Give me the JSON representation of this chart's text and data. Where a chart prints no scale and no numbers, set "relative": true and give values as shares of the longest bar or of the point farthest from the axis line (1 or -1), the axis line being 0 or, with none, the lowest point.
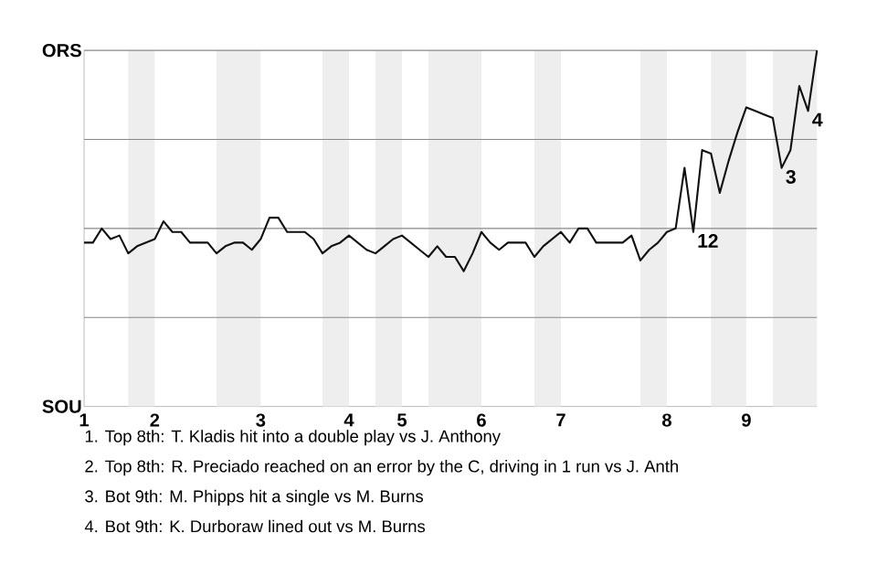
{
  "chart_data": {
    "type": "line",
    "relative": true,
    "categories": [
      "1",
      null,
      null,
      null,
      null,
      null,
      null,
      null,
      "2",
      null,
      null,
      null,
      null,
      null,
      null,
      null,
      null,
      null,
      null,
      null,
      "3",
      null,
      null,
      null,
      null,
      null,
      null,
      null,
      null,
      null,
      "4",
      null,
      null,
      null,
      null,
      null,
      "5",
      null,
      null,
      null,
      null,
      null,
      null,
      null,
      null,
      "6",
      null,
      null,
      null,
      null,
      null,
      null,
      null,
      null,
      "7",
      null,
      null,
      null,
      null,
      null,
      null,
      null,
      null,
      null,
      null,
      null,
      "8",
      null,
      null,
      null,
      null,
      null,
      null,
      null,
      null,
      "9",
      null,
      null,
      null,
      null,
      null,
      null,
      null,
      null
    ],
    "series": [
      {
        "color": "#111111",
        "values": [
          0.46,
          0.46,
          0.5,
          0.47,
          0.48,
          0.43,
          0.45,
          0.46,
          0.47,
          0.52,
          0.49,
          0.49,
          0.46,
          0.46,
          0.46,
          0.43,
          0.45,
          0.46,
          0.46,
          0.44,
          0.47,
          0.53,
          0.53,
          0.49,
          0.49,
          0.49,
          0.47,
          0.43,
          0.45,
          0.46,
          0.48,
          0.46,
          0.44,
          0.43,
          0.45,
          0.47,
          0.48,
          0.46,
          0.44,
          0.42,
          0.45,
          0.42,
          0.42,
          0.38,
          0.43,
          0.49,
          0.46,
          0.44,
          0.46,
          0.46,
          0.46,
          0.42,
          0.45,
          0.47,
          0.49,
          0.46,
          0.5,
          0.5,
          0.46,
          0.46,
          0.46,
          0.46,
          0.48,
          0.41,
          0.44,
          0.46,
          0.49,
          0.5,
          0.67,
          0.49,
          0.72,
          0.71,
          0.6,
          0.69,
          0.77,
          0.84,
          0.83,
          0.82,
          0.81,
          0.67,
          0.72,
          0.9,
          0.83,
          1.0
        ]
      }
    ],
    "ref_lines": [
      {
        "axis": "y",
        "value": 0.25,
        "color": "#888888"
      },
      {
        "axis": "y",
        "value": 0.5,
        "color": "#888888"
      },
      {
        "axis": "y",
        "value": 0.75,
        "color": "#888888"
      },
      {
        "axis": "y",
        "value": 1,
        "color": "#888888"
      }
    ],
    "annotations": [
      "ORS",
      "SOU",
      {
        "text": "1",
        "y": 0.49
      },
      {
        "text": "2",
        "y": 0.49
      },
      {
        "text": "3",
        "y": 0.67
      },
      {
        "text": "4",
        "y": 0.83
      },
      "1. Top 8th: T. Kladis hit into a double play vs J. Anthony",
      "2. Top 8th: R. Preciado reached on an error by the C, driving in 1 run vs J. Anth",
      "3. Bot 9th: M. Phipps hit a single vs M. Burns",
      "4. Bot 9th: K. Durboraw lined out vs M. Burns"
    ]
  }
}
